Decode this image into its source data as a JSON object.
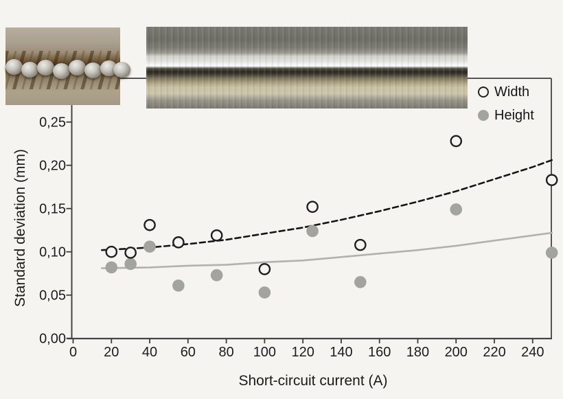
{
  "figure": {
    "background_color": "#f5f4f1",
    "photos": [
      {
        "name": "globular-weld-bead",
        "description": "close-up of irregular weld bead with metal droplets"
      },
      {
        "name": "smooth-weld-seam",
        "description": "close-up of smooth continuous weld seam"
      }
    ]
  },
  "chart_data": {
    "type": "scatter",
    "title": "",
    "xlabel": "Short-circuit current (A)",
    "ylabel": "Standard deviation (mm)",
    "xlim": [
      0,
      250
    ],
    "ylim": [
      0,
      0.3
    ],
    "grid": false,
    "legend_position": "top-right-inside",
    "x_ticks": {
      "values": [
        0,
        20,
        40,
        60,
        80,
        100,
        120,
        140,
        160,
        180,
        200,
        220,
        240
      ],
      "labels": [
        "0",
        "20",
        "40",
        "60",
        "80",
        "100",
        "120",
        "140",
        "160",
        "180",
        "200",
        "220",
        "240"
      ]
    },
    "y_ticks": {
      "values": [
        0,
        0.05,
        0.1,
        0.15,
        0.2,
        0.25
      ],
      "labels": [
        "0,00",
        "0,05",
        "0,10",
        "0,15",
        "0,20",
        "0,25"
      ]
    },
    "series": [
      {
        "name": "Width",
        "marker": "open-circle",
        "marker_color": "#1f1f1f",
        "points": [
          {
            "x": 20,
            "y": 0.1
          },
          {
            "x": 30,
            "y": 0.099
          },
          {
            "x": 40,
            "y": 0.131
          },
          {
            "x": 55,
            "y": 0.111
          },
          {
            "x": 75,
            "y": 0.119
          },
          {
            "x": 100,
            "y": 0.08
          },
          {
            "x": 125,
            "y": 0.152
          },
          {
            "x": 150,
            "y": 0.108
          },
          {
            "x": 200,
            "y": 0.228
          },
          {
            "x": 250,
            "y": 0.183
          }
        ],
        "trendline": {
          "style": "dashed",
          "color": "#161616",
          "x": [
            15,
            40,
            60,
            80,
            100,
            120,
            140,
            160,
            180,
            200,
            220,
            240,
            250
          ],
          "y": [
            0.102,
            0.105,
            0.109,
            0.114,
            0.121,
            0.128,
            0.137,
            0.147,
            0.158,
            0.17,
            0.184,
            0.198,
            0.206
          ]
        }
      },
      {
        "name": "Height",
        "marker": "filled-circle",
        "marker_color": "#a3a3a0",
        "points": [
          {
            "x": 20,
            "y": 0.082
          },
          {
            "x": 30,
            "y": 0.086
          },
          {
            "x": 40,
            "y": 0.106
          },
          {
            "x": 55,
            "y": 0.061
          },
          {
            "x": 75,
            "y": 0.073
          },
          {
            "x": 100,
            "y": 0.053
          },
          {
            "x": 125,
            "y": 0.124
          },
          {
            "x": 150,
            "y": 0.065
          },
          {
            "x": 200,
            "y": 0.149
          },
          {
            "x": 250,
            "y": 0.099
          }
        ],
        "trendline": {
          "style": "solid",
          "color": "#b2b1ae",
          "x": [
            15,
            40,
            60,
            80,
            100,
            120,
            140,
            160,
            180,
            200,
            220,
            240,
            250
          ],
          "y": [
            0.081,
            0.082,
            0.084,
            0.085,
            0.088,
            0.09,
            0.094,
            0.098,
            0.102,
            0.107,
            0.113,
            0.119,
            0.122
          ]
        }
      }
    ]
  }
}
